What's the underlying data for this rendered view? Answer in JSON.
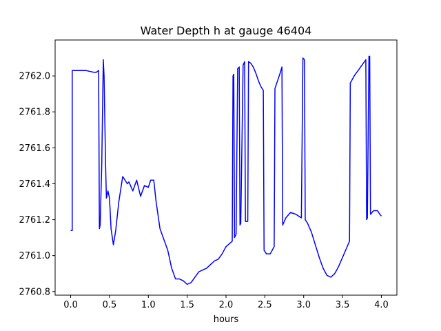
{
  "chart_data": {
    "type": "line",
    "title": "Water Depth h at gauge 46404",
    "xlabel": "hours",
    "ylabel": "",
    "xlim": [
      -0.2,
      4.2
    ],
    "ylim": [
      2760.78,
      2762.2
    ],
    "xticks": [
      0.0,
      0.5,
      1.0,
      1.5,
      2.0,
      2.5,
      3.0,
      3.5,
      4.0
    ],
    "xtick_labels": [
      "0.0",
      "0.5",
      "1.0",
      "1.5",
      "2.0",
      "2.5",
      "3.0",
      "3.5",
      "4.0"
    ],
    "yticks": [
      2760.8,
      2761.0,
      2761.2,
      2761.4,
      2761.6,
      2761.8,
      2762.0
    ],
    "ytick_labels": [
      "2760.8",
      "2761.0",
      "2761.2",
      "2761.4",
      "2761.6",
      "2761.8",
      "2762.0"
    ],
    "grid": false,
    "series": [
      {
        "name": "",
        "color": "#0000ff",
        "points": [
          [
            0.0,
            2761.14
          ],
          [
            0.02,
            2761.14
          ],
          [
            0.02,
            2762.03
          ],
          [
            0.2,
            2762.03
          ],
          [
            0.3,
            2762.02
          ],
          [
            0.33,
            2762.02
          ],
          [
            0.36,
            2762.03
          ],
          [
            0.37,
            2761.15
          ],
          [
            0.38,
            2761.17
          ],
          [
            0.4,
            2761.5
          ],
          [
            0.42,
            2762.09
          ],
          [
            0.43,
            2762.0
          ],
          [
            0.45,
            2761.5
          ],
          [
            0.46,
            2761.32
          ],
          [
            0.48,
            2761.36
          ],
          [
            0.5,
            2761.32
          ],
          [
            0.52,
            2761.15
          ],
          [
            0.55,
            2761.06
          ],
          [
            0.58,
            2761.14
          ],
          [
            0.62,
            2761.3
          ],
          [
            0.67,
            2761.44
          ],
          [
            0.7,
            2761.42
          ],
          [
            0.73,
            2761.4
          ],
          [
            0.75,
            2761.41
          ],
          [
            0.8,
            2761.36
          ],
          [
            0.85,
            2761.42
          ],
          [
            0.9,
            2761.33
          ],
          [
            0.95,
            2761.39
          ],
          [
            1.0,
            2761.38
          ],
          [
            1.03,
            2761.42
          ],
          [
            1.07,
            2761.42
          ],
          [
            1.1,
            2761.3
          ],
          [
            1.15,
            2761.15
          ],
          [
            1.2,
            2761.09
          ],
          [
            1.25,
            2761.03
          ],
          [
            1.3,
            2760.93
          ],
          [
            1.35,
            2760.87
          ],
          [
            1.4,
            2760.87
          ],
          [
            1.45,
            2760.86
          ],
          [
            1.5,
            2760.84
          ],
          [
            1.55,
            2760.85
          ],
          [
            1.6,
            2760.88
          ],
          [
            1.65,
            2760.91
          ],
          [
            1.7,
            2760.92
          ],
          [
            1.75,
            2760.93
          ],
          [
            1.8,
            2760.95
          ],
          [
            1.85,
            2760.97
          ],
          [
            1.9,
            2760.98
          ],
          [
            1.95,
            2761.01
          ],
          [
            2.0,
            2761.05
          ],
          [
            2.08,
            2761.08
          ],
          [
            2.09,
            2762.0
          ],
          [
            2.1,
            2762.01
          ],
          [
            2.11,
            2761.1
          ],
          [
            2.12,
            2761.11
          ],
          [
            2.13,
            2761.12
          ],
          [
            2.15,
            2762.04
          ],
          [
            2.17,
            2762.05
          ],
          [
            2.18,
            2761.17
          ],
          [
            2.19,
            2761.18
          ],
          [
            2.22,
            2762.06
          ],
          [
            2.24,
            2762.08
          ],
          [
            2.25,
            2761.19
          ],
          [
            2.28,
            2761.19
          ],
          [
            2.29,
            2762.08
          ],
          [
            2.32,
            2762.07
          ],
          [
            2.35,
            2762.05
          ],
          [
            2.38,
            2762.02
          ],
          [
            2.42,
            2761.97
          ],
          [
            2.45,
            2761.94
          ],
          [
            2.48,
            2761.92
          ],
          [
            2.49,
            2761.03
          ],
          [
            2.52,
            2761.01
          ],
          [
            2.57,
            2761.01
          ],
          [
            2.62,
            2761.05
          ],
          [
            2.63,
            2761.93
          ],
          [
            2.7,
            2762.02
          ],
          [
            2.72,
            2762.05
          ],
          [
            2.73,
            2761.17
          ],
          [
            2.77,
            2761.21
          ],
          [
            2.83,
            2761.24
          ],
          [
            2.9,
            2761.23
          ],
          [
            2.97,
            2761.21
          ],
          [
            2.99,
            2762.1
          ],
          [
            3.01,
            2762.09
          ],
          [
            3.02,
            2761.2
          ],
          [
            3.05,
            2761.18
          ],
          [
            3.1,
            2761.13
          ],
          [
            3.15,
            2761.06
          ],
          [
            3.2,
            2760.99
          ],
          [
            3.25,
            2760.93
          ],
          [
            3.3,
            2760.89
          ],
          [
            3.35,
            2760.88
          ],
          [
            3.4,
            2760.9
          ],
          [
            3.45,
            2760.94
          ],
          [
            3.5,
            2760.99
          ],
          [
            3.55,
            2761.04
          ],
          [
            3.59,
            2761.08
          ],
          [
            3.6,
            2761.96
          ],
          [
            3.65,
            2762.0
          ],
          [
            3.7,
            2762.03
          ],
          [
            3.75,
            2762.06
          ],
          [
            3.8,
            2762.09
          ],
          [
            3.81,
            2761.2
          ],
          [
            3.82,
            2761.21
          ],
          [
            3.84,
            2762.11
          ],
          [
            3.85,
            2762.11
          ],
          [
            3.86,
            2761.23
          ],
          [
            3.9,
            2761.25
          ],
          [
            3.95,
            2761.25
          ],
          [
            3.98,
            2761.23
          ],
          [
            4.0,
            2761.22
          ]
        ]
      }
    ]
  }
}
